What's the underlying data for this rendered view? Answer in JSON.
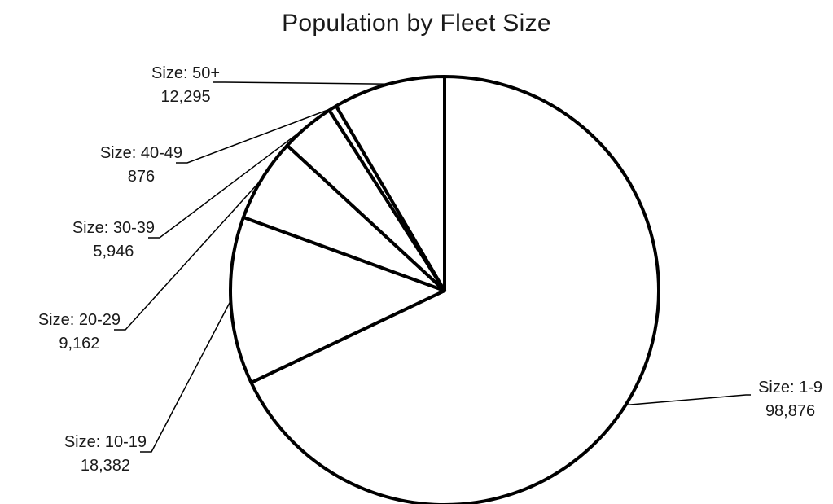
{
  "chart_data": {
    "type": "pie",
    "title": "Population by Fleet Size",
    "categories": [
      "Size: 1-9",
      "Size: 10-19",
      "Size: 20-29",
      "Size: 30-39",
      "Size: 40-49",
      "Size: 50+"
    ],
    "values": [
      98876,
      18382,
      9162,
      5946,
      876,
      12295
    ],
    "value_labels": [
      "98,876",
      "18,382",
      "9,162",
      "5,946",
      "876",
      "12,295"
    ],
    "start_angle": "12 o'clock",
    "direction": "clockwise",
    "slice_fill": "#ffffff",
    "outline_color": "#000000",
    "legend": "none"
  }
}
